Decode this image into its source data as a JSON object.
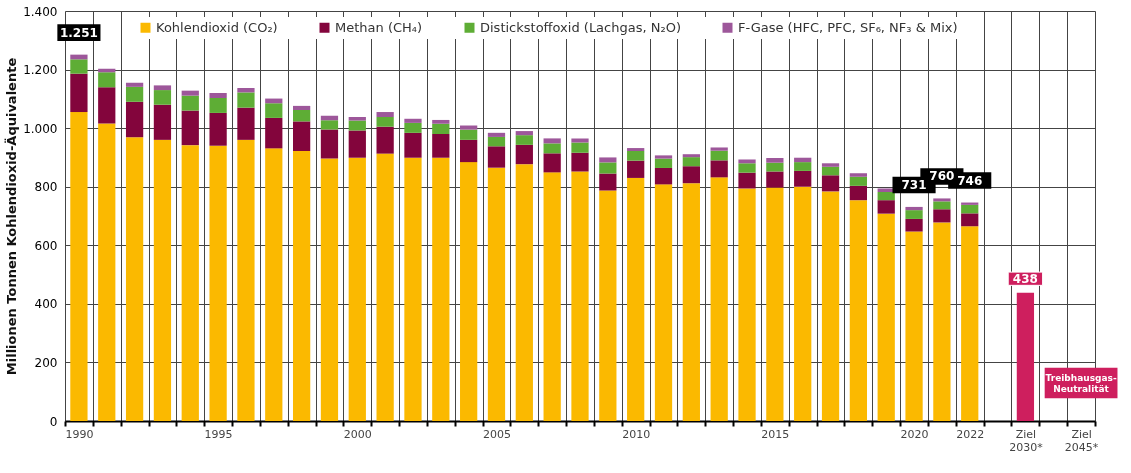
{
  "chart_data": {
    "type": "bar",
    "stacked": true,
    "ylabel": "Millionen Tonnen Kohlendioxid-Äquivalente",
    "categories": [
      "1990",
      null,
      null,
      null,
      null,
      "1995",
      null,
      null,
      null,
      null,
      "2000",
      null,
      null,
      null,
      null,
      "2005",
      null,
      null,
      null,
      null,
      "2010",
      null,
      null,
      null,
      null,
      "2015",
      null,
      null,
      null,
      null,
      "2020",
      null,
      "2022",
      null,
      "Ziel 2030*",
      null,
      "Ziel 2045*"
    ],
    "series": [
      {
        "name": "Kohlendioxid (CO₂)",
        "color": "#fbb900",
        "values": [
          1055,
          1016,
          969,
          960,
          942,
          940,
          960,
          931,
          922,
          896,
          899,
          913,
          899,
          899,
          884,
          865,
          877,
          849,
          852,
          787,
          830,
          808,
          812,
          832,
          794,
          797,
          800,
          784,
          754,
          708,
          647,
          678,
          665,
          null,
          null,
          null,
          null
        ]
      },
      {
        "name": "Methan (CH₄)",
        "color": "#83053c",
        "values": [
          131,
          124,
          121,
          120,
          118,
          112,
          110,
          104,
          101,
          99,
          93,
          92,
          85,
          81,
          76,
          73,
          66,
          65,
          64,
          58,
          59,
          56,
          58,
          58,
          54,
          55,
          54,
          55,
          49,
          46,
          43,
          45,
          44,
          null,
          null,
          null,
          null
        ]
      },
      {
        "name": "Distickstoffoxid (Lachgas, N₂O)",
        "color": "#5ead35",
        "values": [
          49,
          51,
          51,
          50,
          51,
          51,
          52,
          50,
          39,
          32,
          34,
          33,
          34,
          35,
          35,
          32,
          33,
          34,
          35,
          38,
          33,
          32,
          31,
          33,
          32,
          30,
          30,
          29,
          31,
          28,
          30,
          27,
          29,
          null,
          null,
          null,
          null
        ]
      },
      {
        "name": "F-Gase (HFC, PFC, SF₆, NF₃ & Mix)",
        "color": "#9d579a",
        "values": [
          16,
          12,
          14,
          16,
          17,
          17,
          15,
          16,
          14,
          15,
          12,
          17,
          14,
          13,
          14,
          14,
          14,
          17,
          14,
          17,
          10,
          11,
          10,
          11,
          13,
          16,
          15,
          12,
          12,
          12,
          11,
          10,
          8,
          null,
          null,
          null,
          null
        ]
      },
      {
        "color": "#ce1f5e",
        "values": [
          null,
          null,
          null,
          null,
          null,
          null,
          null,
          null,
          null,
          null,
          null,
          null,
          null,
          null,
          null,
          null,
          null,
          null,
          null,
          null,
          null,
          null,
          null,
          null,
          null,
          null,
          null,
          null,
          null,
          null,
          null,
          null,
          null,
          null,
          438,
          null,
          null
        ],
        "value_labels": [
          null,
          null,
          null,
          null,
          null,
          null,
          null,
          null,
          null,
          null,
          null,
          null,
          null,
          null,
          null,
          null,
          null,
          null,
          null,
          null,
          null,
          null,
          null,
          null,
          null,
          null,
          null,
          null,
          null,
          null,
          null,
          null,
          null,
          null,
          "438",
          null,
          null
        ]
      }
    ],
    "totals": [
      "1.251",
      null,
      null,
      null,
      null,
      null,
      null,
      null,
      null,
      null,
      null,
      null,
      null,
      null,
      null,
      null,
      null,
      null,
      null,
      null,
      null,
      null,
      null,
      null,
      null,
      null,
      null,
      null,
      null,
      null,
      "731",
      "760",
      "746",
      null,
      null,
      null,
      null
    ],
    "annotations": [
      "Treibhausgas-Neutralität"
    ],
    "ylim": [
      0,
      1400
    ],
    "yticks": [
      0,
      200,
      400,
      600,
      800,
      {
        "value": 1000,
        "label": "1.000"
      },
      {
        "value": 1200,
        "label": "1.200"
      },
      {
        "value": 1400,
        "label": "1.400"
      }
    ],
    "grid": true,
    "legend": "top"
  }
}
